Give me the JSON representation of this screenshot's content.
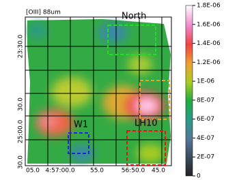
{
  "chart_data": {
    "type": "heatmap",
    "title": "[OIII] 88um",
    "x_tick_labels": [
      "05.0",
      "4:57:00.0",
      "55.0",
      "56:50.0",
      "45.0"
    ],
    "y_tick_labels": [
      "23:30.0",
      "30.0",
      "25:00.0",
      "30.0"
    ],
    "regions": [
      {
        "name": "North",
        "color": "#22dd22"
      },
      {
        "name": "W1",
        "color": "#2222dd"
      },
      {
        "name": "LH10",
        "color": "#ee1111"
      }
    ],
    "clim": [
      0,
      1.8e-06
    ],
    "cticks": [
      0,
      {
        "value": 2e-07,
        "label": "2E-07"
      },
      {
        "value": 4e-07,
        "label": "4E-07"
      },
      {
        "value": 6e-07,
        "label": "6E-07"
      },
      {
        "value": 8e-07,
        "label": "8E-07"
      },
      {
        "value": 1e-06,
        "label": "1E-06"
      },
      {
        "value": 1.2e-06,
        "label": "1.2E-06"
      },
      {
        "value": 1.4e-06,
        "label": "1.4E-06"
      },
      {
        "value": 1.6e-06,
        "label": "1.6E-06"
      },
      {
        "value": 1.8e-06,
        "label": "1.8E-06"
      }
    ]
  }
}
